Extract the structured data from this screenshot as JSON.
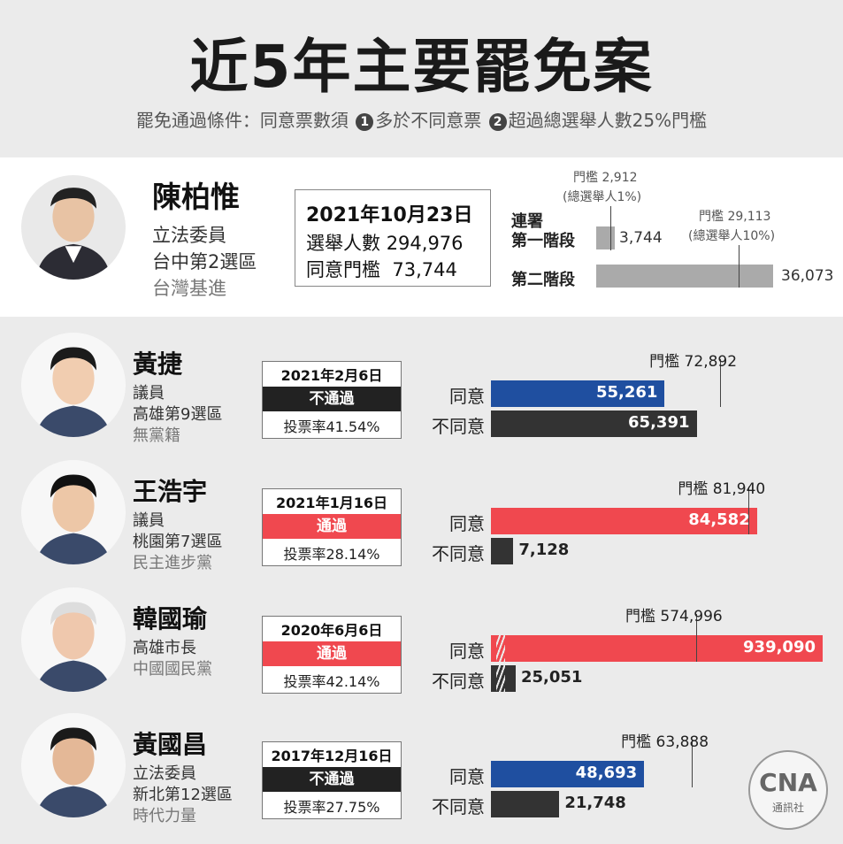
{
  "title": "近5年主要罷免案",
  "subtitle_prefix": "罷免通過條件：同意票數須",
  "cond1_num": "1",
  "cond1": "多於不同意票",
  "cond2_num": "2",
  "cond2": "超過總選舉人數25%門檻",
  "featured": {
    "name": "陳柏惟",
    "role": "立法委員",
    "district": "台中第2選區",
    "party": "台灣基進",
    "date": "2021年10月23日",
    "voters_label": "選舉人數",
    "voters": "294,976",
    "threshold_label": "同意門檻",
    "threshold": "73,744",
    "petition_label_1": "連署",
    "stage1_label": "第一階段",
    "stage2_label": "第二階段",
    "stage1_thr_label": "門檻 2,912",
    "stage1_thr_note": "(總選舉人1%)",
    "stage2_thr_label": "門檻 29,113",
    "stage2_thr_note": "(總選舉人10%)",
    "stage1_value_label": "3,744",
    "stage2_value_label": "36,073"
  },
  "labels": {
    "agree": "同意",
    "disagree": "不同意"
  },
  "colors": {
    "agree_blue": "#1f4fa0",
    "agree_red": "#f0484f",
    "disagree": "#333333",
    "fail_tag": "#222222",
    "pass_tag": "#f0484f"
  },
  "cases": [
    {
      "name": "黃捷",
      "role": "議員",
      "district": "高雄第9選區",
      "party": "無黨籍",
      "date": "2021年2月6日",
      "result": "不通過",
      "passed": false,
      "turnout": "投票率41.54%",
      "threshold_label": "門檻 72,892",
      "agree_label": "55,261",
      "disagree_label": "65,391"
    },
    {
      "name": "王浩宇",
      "role": "議員",
      "district": "桃園第7選區",
      "party": "民主進步黨",
      "date": "2021年1月16日",
      "result": "通過",
      "passed": true,
      "turnout": "投票率28.14%",
      "threshold_label": "門檻 81,940",
      "agree_label": "84,582",
      "disagree_label": "7,128"
    },
    {
      "name": "韓國瑜",
      "role": "高雄市長",
      "district": "",
      "party": "中國國民黨",
      "date": "2020年6月6日",
      "result": "通過",
      "passed": true,
      "turnout": "投票率42.14%",
      "threshold_label": "門檻 574,996",
      "agree_label": "939,090",
      "disagree_label": "25,051"
    },
    {
      "name": "黃國昌",
      "role": "立法委員",
      "district": "新北第12選區",
      "party": "時代力量",
      "date": "2017年12月16日",
      "result": "不通過",
      "passed": false,
      "turnout": "投票率27.75%",
      "threshold_label": "門檻 63,888",
      "agree_label": "48,693",
      "disagree_label": "21,748"
    }
  ],
  "logo": {
    "mark": "CNA",
    "text": "通訊社"
  },
  "chart_data": [
    {
      "type": "bar",
      "title": "陳柏惟 連署",
      "categories": [
        "第一階段",
        "第二階段"
      ],
      "values": [
        3744,
        36073
      ],
      "thresholds": [
        2912,
        29113
      ]
    },
    {
      "type": "bar",
      "title": "黃捷",
      "categories": [
        "同意",
        "不同意"
      ],
      "values": [
        55261,
        65391
      ],
      "threshold": 72892
    },
    {
      "type": "bar",
      "title": "王浩宇",
      "categories": [
        "同意",
        "不同意"
      ],
      "values": [
        84582,
        7128
      ],
      "threshold": 81940
    },
    {
      "type": "bar",
      "title": "韓國瑜",
      "categories": [
        "同意",
        "不同意"
      ],
      "values": [
        939090,
        25051
      ],
      "threshold": 574996,
      "axis_break": true
    },
    {
      "type": "bar",
      "title": "黃國昌",
      "categories": [
        "同意",
        "不同意"
      ],
      "values": [
        48693,
        21748
      ],
      "threshold": 63888
    }
  ]
}
